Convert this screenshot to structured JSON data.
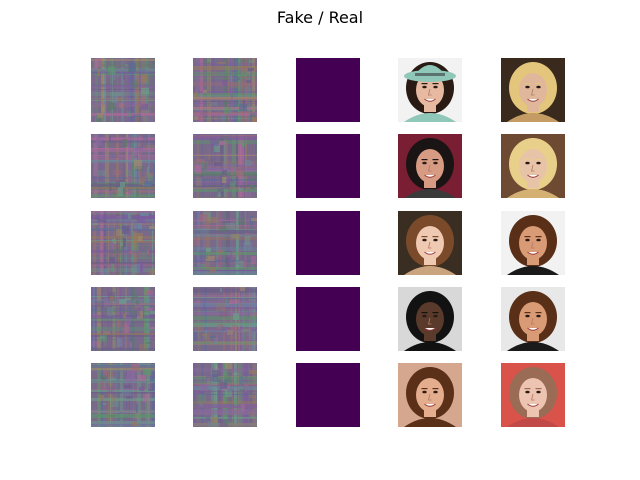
{
  "figure": {
    "title": "Fake / Real"
  },
  "colors": {
    "flat_panel": "#440154",
    "background": "#ffffff"
  },
  "grid": {
    "rows": 5,
    "columns": [
      {
        "kind": "noise",
        "tiles": 5
      },
      {
        "kind": "noise",
        "tiles": 5
      },
      {
        "kind": "flat",
        "tiles": 5
      },
      {
        "kind": "face",
        "tiles": 5
      },
      {
        "kind": "face",
        "tiles": 5
      }
    ]
  },
  "faces": {
    "col4": [
      {
        "bg": "#f2f2f2",
        "hair": "#2a1a14",
        "skin": "#e7b9a0",
        "accessory": "hat",
        "accent": "#8fc7b8"
      },
      {
        "bg": "#7a1e33",
        "hair": "#1b1414",
        "skin": "#d79b83",
        "accessory": "none",
        "accent": "#3a3a3a"
      },
      {
        "bg": "#3a2e22",
        "hair": "#7a4a2a",
        "skin": "#f0c9b3",
        "accessory": "none",
        "accent": "#caa37f"
      },
      {
        "bg": "#d8d8d8",
        "hair": "#121212",
        "skin": "#5a3a2a",
        "accessory": "none",
        "accent": "#111111"
      },
      {
        "bg": "#d4a78e",
        "hair": "#5a3019",
        "skin": "#e3ad8e",
        "accessory": "none",
        "accent": "#5a3019"
      }
    ],
    "col5": [
      {
        "bg": "#3a2a1e",
        "hair": "#e3c57b",
        "skin": "#e0b79a",
        "accessory": "none",
        "accent": "#c39b63"
      },
      {
        "bg": "#6e4a32",
        "hair": "#e9d08a",
        "skin": "#e7c3a7",
        "accessory": "none",
        "accent": "#d4b173"
      },
      {
        "bg": "#f2f2f2",
        "hair": "#5a2f17",
        "skin": "#d99a76",
        "accessory": "none",
        "accent": "#1a1a1a"
      },
      {
        "bg": "#e8e8e8",
        "hair": "#5a2f17",
        "skin": "#d99a76",
        "accessory": "none",
        "accent": "#1a1a1a"
      },
      {
        "bg": "#d9534a",
        "hair": "#9a6c55",
        "skin": "#edc3b1",
        "accessory": "none",
        "accent": "#c14a48"
      }
    ]
  }
}
